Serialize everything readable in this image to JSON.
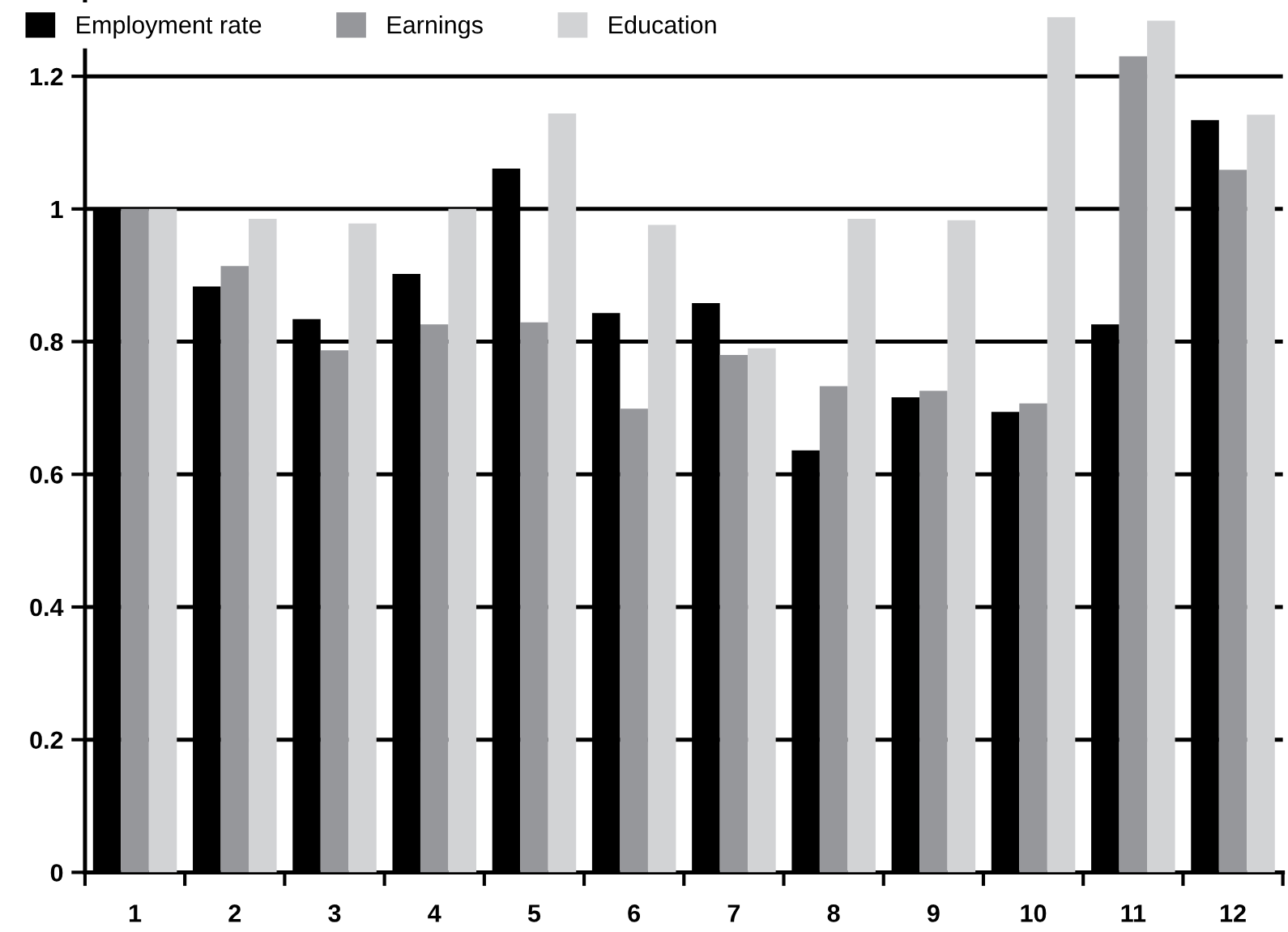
{
  "chart_data": {
    "type": "bar",
    "categories": [
      "1",
      "2",
      "3",
      "4",
      "5",
      "6",
      "7",
      "8",
      "9",
      "10",
      "11",
      "12"
    ],
    "series": [
      {
        "name": "Employment rate",
        "color": "#000000",
        "values": [
          1.0,
          0.883,
          0.834,
          0.902,
          1.061,
          0.843,
          0.858,
          0.636,
          0.716,
          0.694,
          0.826,
          1.134
        ]
      },
      {
        "name": "Earnings",
        "color": "#96979b",
        "values": [
          1.0,
          0.914,
          0.787,
          0.826,
          0.829,
          0.699,
          0.78,
          0.733,
          0.726,
          0.707,
          1.23,
          1.059
        ]
      },
      {
        "name": "Education",
        "color": "#d2d3d5",
        "values": [
          1.0,
          0.985,
          0.978,
          1.0,
          1.144,
          0.976,
          0.79,
          0.985,
          0.983,
          1.289,
          1.284,
          1.142
        ]
      }
    ],
    "ylim": [
      0,
      1.315
    ],
    "yticks": [
      0,
      0.2,
      0.4,
      0.6,
      0.8,
      1,
      1.2
    ],
    "grid": "y",
    "legend": "top left"
  }
}
